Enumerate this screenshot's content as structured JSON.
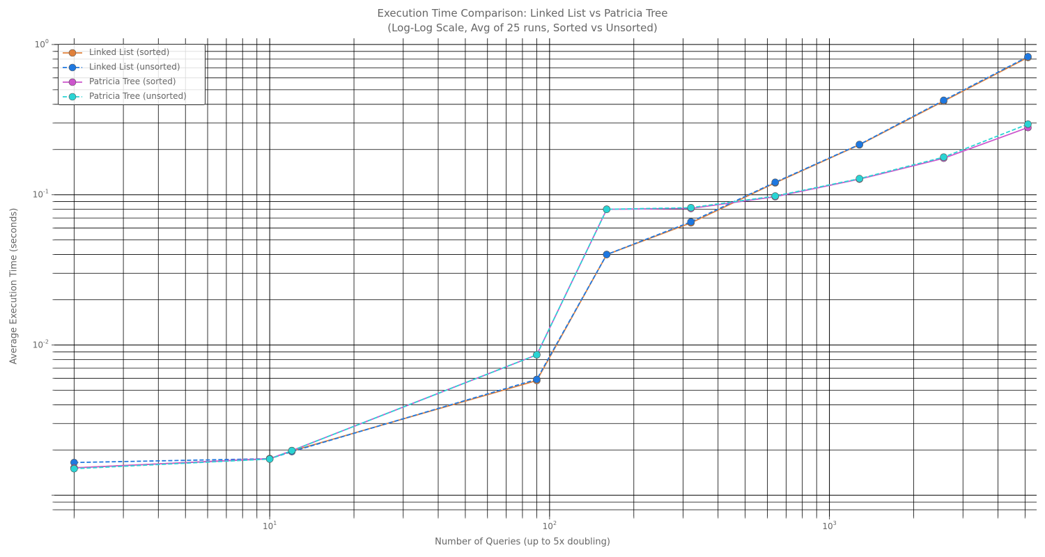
{
  "chart_data": {
    "type": "line",
    "title": "Execution Time Comparison: Linked List vs Patricia Tree",
    "subtitle": "(Log-Log Scale, Avg of 25 runs, Sorted vs Unsorted)",
    "xlabel": "Number of Queries (up to 5x doubling)",
    "ylabel": "Average Execution Time (seconds)",
    "x_scale": "log",
    "y_scale": "log",
    "xlim": [
      1.7,
      5500
    ],
    "ylim": [
      0.00072,
      1.1
    ],
    "x_ticks": [
      {
        "base": "10",
        "exp": "1",
        "value": 10
      },
      {
        "base": "10",
        "exp": "2",
        "value": 100
      },
      {
        "base": "10",
        "exp": "3",
        "value": 1000
      }
    ],
    "y_ticks": [
      {
        "base": "10",
        "exp": "0",
        "value": 1
      },
      {
        "base": "10",
        "exp": "-1",
        "value": 0.1
      },
      {
        "base": "10",
        "exp": "-2",
        "value": 0.01
      }
    ],
    "grid": true,
    "legend_position": "top-left",
    "series": [
      {
        "name": "Linked List (sorted)",
        "color": "#e0803a",
        "dash": "solid",
        "x": [
          2,
          10,
          12,
          90,
          160,
          320,
          640,
          1280,
          2560,
          5120
        ],
        "y": [
          0.00152,
          0.00175,
          0.00197,
          0.0058,
          0.04,
          0.065,
          0.12,
          0.215,
          0.42,
          0.82
        ]
      },
      {
        "name": "Linked List (unsorted)",
        "color": "#1f78e0",
        "dash": "dashed",
        "x": [
          2,
          10,
          12,
          90,
          160,
          320,
          640,
          1280,
          2560,
          5120
        ],
        "y": [
          0.00165,
          0.00175,
          0.00195,
          0.0059,
          0.04,
          0.066,
          0.121,
          0.216,
          0.425,
          0.83
        ]
      },
      {
        "name": "Patricia Tree (sorted)",
        "color": "#cc55cc",
        "dash": "solid",
        "x": [
          2,
          10,
          12,
          90,
          160,
          320,
          640,
          1280,
          2560,
          5120
        ],
        "y": [
          0.00152,
          0.00175,
          0.00198,
          0.0086,
          0.08,
          0.081,
          0.097,
          0.127,
          0.175,
          0.28
        ]
      },
      {
        "name": "Patricia Tree (unsorted)",
        "color": "#2ad4d4",
        "dash": "dashed",
        "x": [
          2,
          10,
          12,
          90,
          160,
          320,
          640,
          1280,
          2560,
          5120
        ],
        "y": [
          0.0015,
          0.00174,
          0.00198,
          0.0086,
          0.08,
          0.082,
          0.098,
          0.128,
          0.178,
          0.295
        ]
      }
    ]
  }
}
